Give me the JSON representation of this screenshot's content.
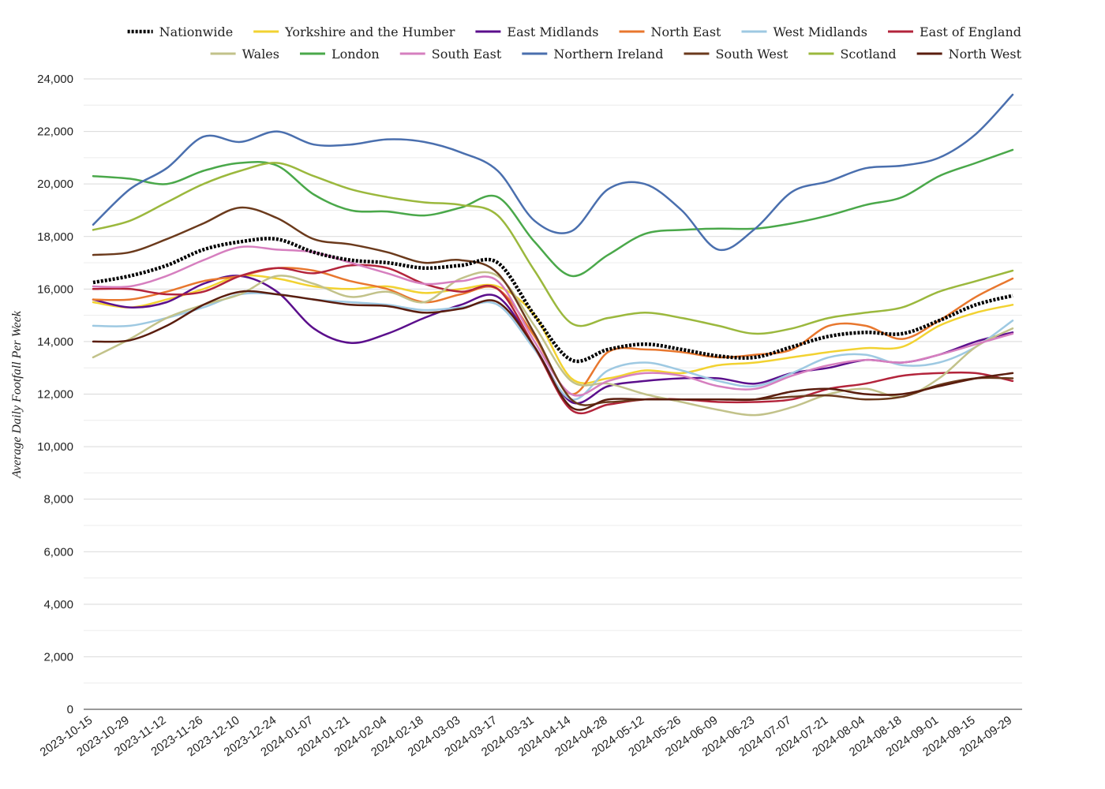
{
  "chart_data": {
    "type": "line",
    "ylabel": "Average Daily Footfall Per Week",
    "xlabel": "",
    "ylim": [
      0,
      24000
    ],
    "yticks": [
      0,
      2000,
      4000,
      6000,
      8000,
      10000,
      12000,
      14000,
      16000,
      18000,
      20000,
      22000,
      24000
    ],
    "ytick_labels": [
      "0",
      "2,000",
      "4,000",
      "6,000",
      "8,000",
      "10,000",
      "12,000",
      "14,000",
      "16,000",
      "18,000",
      "20,000",
      "22,000",
      "24,000"
    ],
    "grid": true,
    "legend_position": "top",
    "x": [
      "2023-10-15",
      "2023-10-29",
      "2023-11-12",
      "2023-11-26",
      "2023-12-10",
      "2023-12-24",
      "2024-01-07",
      "2024-01-21",
      "2024-02-04",
      "2024-02-18",
      "2024-03-03",
      "2024-03-17",
      "2024-03-31",
      "2024-04-14",
      "2024-04-28",
      "2024-05-12",
      "2024-05-26",
      "2024-06-09",
      "2024-06-23",
      "2024-07-07",
      "2024-07-21",
      "2024-08-04",
      "2024-08-18",
      "2024-09-01",
      "2024-09-15",
      "2024-09-29"
    ],
    "series": [
      {
        "name": "Nationwide",
        "color": "#000000",
        "dashed": true,
        "values": [
          16250,
          16500,
          16900,
          17500,
          17800,
          17900,
          17400,
          17100,
          17000,
          16800,
          16900,
          17000,
          15000,
          13300,
          13700,
          13900,
          13700,
          13450,
          13400,
          13800,
          14200,
          14350,
          14300,
          14800,
          15400,
          15750
        ]
      },
      {
        "name": "Yorkshire and the Humber",
        "color": "#f2d231",
        "values": [
          15500,
          15300,
          15600,
          16000,
          16500,
          16400,
          16100,
          16000,
          16100,
          15850,
          16000,
          16100,
          15000,
          12600,
          12600,
          12900,
          12800,
          13100,
          13200,
          13400,
          13600,
          13750,
          13800,
          14600,
          15100,
          15400
        ]
      },
      {
        "name": "East Midlands",
        "color": "#5b0f8c",
        "values": [
          15600,
          15300,
          15500,
          16200,
          16500,
          15900,
          14500,
          13950,
          14300,
          14900,
          15400,
          15700,
          13800,
          11700,
          12300,
          12500,
          12600,
          12600,
          12400,
          12800,
          13000,
          13300,
          13200,
          13500,
          14000,
          14350
        ]
      },
      {
        "name": "North East",
        "color": "#e8772e",
        "values": [
          15600,
          15600,
          15900,
          16300,
          16500,
          16800,
          16700,
          16300,
          16000,
          15500,
          15800,
          16000,
          14200,
          12000,
          13600,
          13700,
          13600,
          13400,
          13500,
          13700,
          14600,
          14600,
          14100,
          14800,
          15700,
          16400
        ]
      },
      {
        "name": "West Midlands",
        "color": "#9ec9e2",
        "values": [
          14600,
          14600,
          14900,
          15300,
          15800,
          15800,
          15600,
          15500,
          15400,
          15200,
          15300,
          15400,
          13700,
          11800,
          12900,
          13200,
          12900,
          12500,
          12300,
          12800,
          13400,
          13500,
          13100,
          13200,
          13800,
          14800
        ]
      },
      {
        "name": "East of England",
        "color": "#b3243b",
        "values": [
          16000,
          16000,
          15800,
          15900,
          16500,
          16800,
          16600,
          16900,
          16800,
          16200,
          15900,
          16000,
          13800,
          11400,
          11600,
          11800,
          11800,
          11700,
          11700,
          11800,
          12200,
          12400,
          12700,
          12800,
          12800,
          12500
        ]
      },
      {
        "name": "Wales",
        "color": "#c2c28a",
        "values": [
          13400,
          14100,
          14900,
          15400,
          15800,
          16500,
          16200,
          15700,
          15900,
          15500,
          16400,
          16500,
          14600,
          12500,
          12400,
          12000,
          11700,
          11400,
          11200,
          11500,
          12000,
          12200,
          11900,
          12600,
          13800,
          14500
        ]
      },
      {
        "name": "London",
        "color": "#4aa84a",
        "values": [
          20300,
          20200,
          20000,
          20500,
          20800,
          20700,
          19600,
          19000,
          18950,
          18800,
          19100,
          19500,
          17800,
          16500,
          17300,
          18100,
          18250,
          18300,
          18300,
          18500,
          18800,
          19200,
          19500,
          20300,
          20800,
          21300
        ]
      },
      {
        "name": "South East",
        "color": "#d67fbf",
        "values": [
          16100,
          16100,
          16500,
          17100,
          17600,
          17500,
          17400,
          17000,
          16600,
          16200,
          16300,
          16300,
          14000,
          12000,
          12500,
          12800,
          12700,
          12300,
          12200,
          12700,
          13100,
          13300,
          13200,
          13500,
          13900,
          14300
        ]
      },
      {
        "name": "Northern Ireland",
        "color": "#4a6fae",
        "values": [
          18450,
          19800,
          20600,
          21800,
          21600,
          22000,
          21500,
          21500,
          21700,
          21600,
          21200,
          20500,
          18600,
          18200,
          19800,
          20000,
          19000,
          17500,
          18300,
          19700,
          20100,
          20600,
          20700,
          21000,
          21900,
          23400
        ]
      },
      {
        "name": "South West",
        "color": "#6b3a1c",
        "values": [
          17300,
          17400,
          17900,
          18500,
          19100,
          18700,
          17900,
          17700,
          17400,
          17000,
          17100,
          16600,
          14300,
          11800,
          11700,
          11800,
          11800,
          11800,
          11800,
          11900,
          11950,
          11800,
          11900,
          12350,
          12600,
          12600
        ]
      },
      {
        "name": "Scotland",
        "color": "#9bb83d",
        "values": [
          18250,
          18600,
          19300,
          20000,
          20500,
          20800,
          20300,
          19800,
          19500,
          19300,
          19200,
          18800,
          16700,
          14700,
          14900,
          15100,
          14900,
          14600,
          14300,
          14500,
          14900,
          15100,
          15300,
          15900,
          16300,
          16700
        ]
      },
      {
        "name": "North West",
        "color": "#5a1d0e",
        "values": [
          14000,
          14050,
          14600,
          15400,
          15900,
          15800,
          15600,
          15400,
          15350,
          15100,
          15250,
          15500,
          13800,
          11500,
          11800,
          11800,
          11800,
          11800,
          11800,
          12100,
          12200,
          12000,
          12000,
          12300,
          12600,
          12800
        ]
      }
    ]
  }
}
